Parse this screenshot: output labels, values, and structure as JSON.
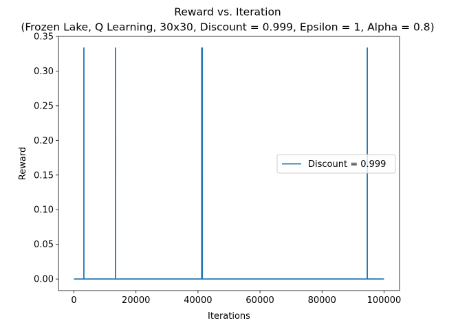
{
  "chart_data": {
    "type": "line",
    "title": "Reward vs. Iteration",
    "subtitle": "(Frozen Lake, Q Learning, 30x30, Discount = 0.999, Epsilon = 1, Alpha = 0.8)",
    "xlabel": "Iterations",
    "ylabel": "Reward",
    "xlim": [
      -5000,
      105000
    ],
    "ylim": [
      -0.0167,
      0.35
    ],
    "xticks": [
      0,
      20000,
      40000,
      60000,
      80000,
      100000
    ],
    "xtick_labels": [
      "0",
      "20000",
      "40000",
      "60000",
      "80000",
      "100000"
    ],
    "yticks": [
      0.0,
      0.05,
      0.1,
      0.15,
      0.2,
      0.25,
      0.3,
      0.35
    ],
    "ytick_labels": [
      "0.00",
      "0.05",
      "0.10",
      "0.15",
      "0.20",
      "0.25",
      "0.30",
      "0.35"
    ],
    "grid": false,
    "legend_position": "center-right",
    "series": [
      {
        "name": "Discount = 0.999",
        "color": "#1f77b4",
        "x": [
          0,
          3199,
          3200,
          3201,
          13399,
          13400,
          13401,
          41199,
          41200,
          41201,
          41399,
          41400,
          41401,
          94599,
          94600,
          94601,
          100000
        ],
        "y": [
          0,
          0,
          0.3333,
          0,
          0,
          0.3333,
          0,
          0,
          0.3333,
          0,
          0,
          0.3333,
          0,
          0,
          0.3333,
          0,
          0
        ]
      }
    ]
  }
}
